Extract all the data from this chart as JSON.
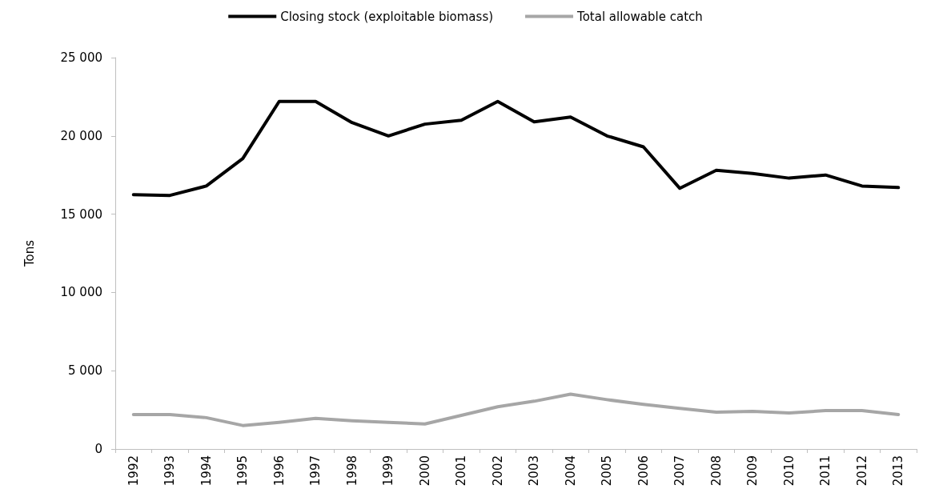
{
  "chart_data": {
    "type": "line",
    "ylabel": "Tons",
    "categories": [
      "1992",
      "1993",
      "1994",
      "1995",
      "1996",
      "1997",
      "1998",
      "1999",
      "2000",
      "2001",
      "2002",
      "2003",
      "2004",
      "2005",
      "2006",
      "2007",
      "2008",
      "2009",
      "2010",
      "2011",
      "2012",
      "2013"
    ],
    "series": [
      {
        "name": "Closing stock (exploitable biomass)",
        "color": "#000000",
        "values": [
          16250,
          16200,
          16800,
          18550,
          22200,
          22200,
          20850,
          20000,
          20750,
          21000,
          22200,
          20900,
          21200,
          20000,
          19300,
          16650,
          17800,
          17600,
          17300,
          17500,
          16800,
          16700
        ]
      },
      {
        "name": "Total allowable catch",
        "color": "#a6a6a6",
        "values": [
          2200,
          2200,
          2000,
          1500,
          1700,
          1950,
          1800,
          1700,
          1600,
          2150,
          2700,
          3050,
          3500,
          3150,
          2850,
          2600,
          2350,
          2400,
          2300,
          2450,
          2450,
          2200
        ]
      }
    ],
    "ylim": [
      0,
      25000
    ],
    "yticks": [
      {
        "value": 0,
        "label": "0"
      },
      {
        "value": 5000,
        "label": "5 000"
      },
      {
        "value": 10000,
        "label": "10 000"
      },
      {
        "value": 15000,
        "label": "15 000"
      },
      {
        "value": 20000,
        "label": "20 000"
      },
      {
        "value": 25000,
        "label": "25 000"
      }
    ],
    "grid": false,
    "legend": "top",
    "marker": "none",
    "line_style": "solid"
  }
}
